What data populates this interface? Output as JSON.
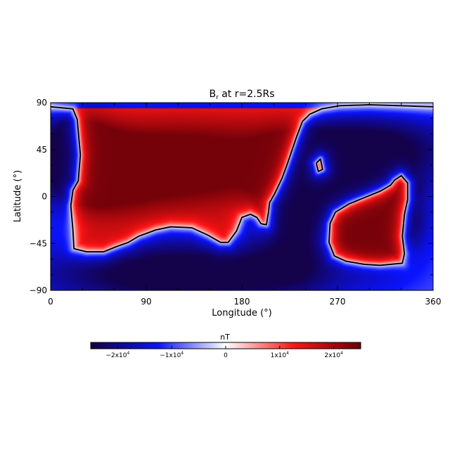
{
  "chart_data": {
    "type": "heatmap",
    "title": "B",
    "title_subscript": "r",
    "title_suffix": " at r=2.5Rs",
    "xlabel": "Longitude (°)",
    "ylabel": "Latitude (°)",
    "xlim": [
      0,
      360
    ],
    "ylim": [
      -90,
      90
    ],
    "xticks": [
      0,
      90,
      180,
      270,
      360
    ],
    "yticks": [
      -90,
      -45,
      0,
      45,
      90
    ],
    "colormap": "blue-white-red",
    "colormap_stops": [
      "#15003a",
      "#0a14ff",
      "#ffffff",
      "#ff1414",
      "#6a0008"
    ],
    "colorbar": {
      "label": "nT",
      "range": [
        -25000,
        25000
      ],
      "tick_values": [
        -20000,
        -10000,
        0,
        10000,
        20000
      ],
      "tick_labels": [
        {
          "mant": "−2x10",
          "exp": "4"
        },
        {
          "mant": "−1x10",
          "exp": "4"
        },
        {
          "mant": "0",
          "exp": ""
        },
        {
          "mant": "1x10",
          "exp": "4"
        },
        {
          "mant": "2x10",
          "exp": "4"
        }
      ]
    },
    "field_sources": [
      {
        "lon": 120,
        "lat": 30,
        "amp": 21000,
        "sig_lon": 75,
        "sig_lat": 38
      },
      {
        "lon": 55,
        "lat": 20,
        "amp": 9000,
        "sig_lon": 30,
        "sig_lat": 30
      },
      {
        "lon": 310,
        "lat": -22,
        "amp": 30000,
        "sig_lon": 28,
        "sig_lat": 26
      },
      {
        "lon": 335,
        "lat": 10,
        "amp": 6000,
        "sig_lon": 10,
        "sig_lat": 8
      },
      {
        "lon": 300,
        "lat": 45,
        "amp": -19000,
        "sig_lon": 70,
        "sig_lat": 30
      },
      {
        "lon": 20,
        "lat": 40,
        "amp": -17000,
        "sig_lon": 25,
        "sig_lat": 35
      },
      {
        "lon": 130,
        "lat": -75,
        "amp": -20000,
        "sig_lon": 120,
        "sig_lat": 25
      },
      {
        "lon": 230,
        "lat": -10,
        "amp": -14000,
        "sig_lon": 25,
        "sig_lat": 40
      },
      {
        "lon": 255,
        "lat": 22,
        "amp": -4000,
        "sig_lon": 6,
        "sig_lat": 6
      }
    ],
    "background_field": -7000,
    "polarity_inversion_lines": [
      {
        "name": "positive-region-1",
        "points": [
          [
            0,
            86
          ],
          [
            11,
            85
          ],
          [
            21,
            84
          ],
          [
            25,
            74
          ],
          [
            28,
            40
          ],
          [
            26,
            15
          ],
          [
            21,
            6
          ],
          [
            19,
            -9
          ],
          [
            21,
            -32
          ],
          [
            22,
            -50
          ],
          [
            34,
            -53
          ],
          [
            50,
            -53
          ],
          [
            62,
            -48
          ],
          [
            73,
            -44
          ],
          [
            83,
            -38
          ],
          [
            99,
            -32
          ],
          [
            113,
            -29
          ],
          [
            133,
            -30
          ],
          [
            148,
            -37
          ],
          [
            160,
            -44
          ],
          [
            167,
            -44
          ],
          [
            175,
            -33
          ],
          [
            180,
            -20
          ],
          [
            188,
            -17
          ],
          [
            194,
            -20
          ],
          [
            198,
            -26
          ],
          [
            203,
            -27
          ],
          [
            205,
            -15
          ],
          [
            206,
            -6
          ],
          [
            211,
            3
          ],
          [
            218,
            18
          ],
          [
            223,
            32
          ],
          [
            231,
            56
          ],
          [
            237,
            72
          ],
          [
            244,
            79
          ],
          [
            255,
            84
          ],
          [
            272,
            87
          ],
          [
            300,
            88
          ],
          [
            330,
            87
          ],
          [
            360,
            86
          ]
        ]
      },
      {
        "name": "positive-region-2",
        "points": [
          [
            281,
            -7
          ],
          [
            293,
            -2
          ],
          [
            310,
            5
          ],
          [
            320,
            11
          ],
          [
            324,
            16
          ],
          [
            330,
            20
          ],
          [
            336,
            13
          ],
          [
            336,
            -3
          ],
          [
            333,
            -17
          ],
          [
            331,
            -38
          ],
          [
            333,
            -55
          ],
          [
            331,
            -64
          ],
          [
            310,
            -66
          ],
          [
            295,
            -65
          ],
          [
            278,
            -62
          ],
          [
            267,
            -57
          ],
          [
            262,
            -44
          ],
          [
            263,
            -26
          ],
          [
            268,
            -15
          ],
          [
            281,
            -7
          ]
        ]
      },
      {
        "name": "positive-island",
        "points": [
          [
            250,
            32
          ],
          [
            254,
            36
          ],
          [
            256,
            26
          ],
          [
            252,
            24
          ],
          [
            250,
            32
          ]
        ]
      }
    ]
  }
}
